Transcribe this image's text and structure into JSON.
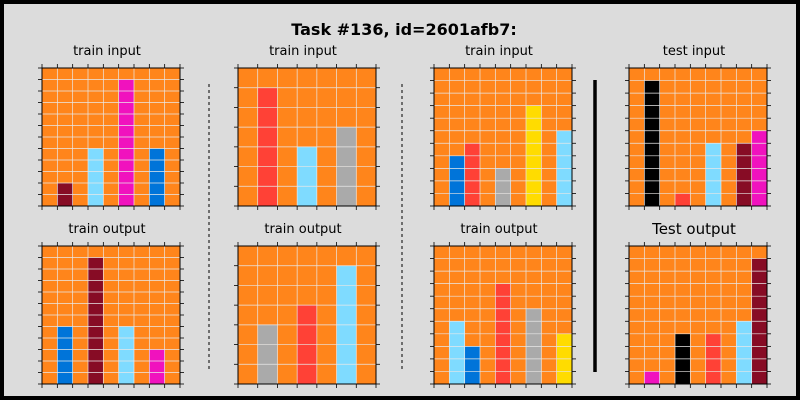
{
  "title": "Task #136, id=2601afb7:",
  "colors": {
    "background_fill": "#ff851b",
    "grid_line": "#e8e8e8",
    "page_bg": "#dcdcdc"
  },
  "panels": [
    {
      "key": "p1",
      "label": "train input",
      "rows": 12,
      "cols": 9,
      "bg": 8,
      "cells": [
        [
          1,
          10,
          9
        ],
        [
          1,
          11,
          9
        ],
        [
          3,
          7,
          8
        ],
        [
          3,
          8,
          8
        ],
        [
          3,
          9,
          8
        ],
        [
          3,
          10,
          8
        ],
        [
          3,
          11,
          8
        ],
        [
          5,
          1,
          6
        ],
        [
          5,
          2,
          6
        ],
        [
          5,
          3,
          6
        ],
        [
          5,
          4,
          6
        ],
        [
          5,
          5,
          6
        ],
        [
          5,
          6,
          6
        ],
        [
          5,
          7,
          6
        ],
        [
          5,
          8,
          6
        ],
        [
          5,
          9,
          6
        ],
        [
          5,
          10,
          6
        ],
        [
          5,
          11,
          6
        ],
        [
          7,
          7,
          1
        ],
        [
          7,
          8,
          1
        ],
        [
          7,
          9,
          1
        ],
        [
          7,
          10,
          1
        ],
        [
          7,
          11,
          1
        ]
      ]
    },
    {
      "key": "p2",
      "label": "train input",
      "rows": 7,
      "cols": 7,
      "bg": 8,
      "cells": [
        [
          1,
          1,
          2
        ],
        [
          1,
          2,
          2
        ],
        [
          1,
          3,
          2
        ],
        [
          1,
          4,
          2
        ],
        [
          1,
          5,
          2
        ],
        [
          1,
          6,
          2
        ],
        [
          3,
          4,
          8
        ],
        [
          3,
          5,
          8
        ],
        [
          3,
          6,
          8
        ],
        [
          5,
          3,
          5
        ],
        [
          5,
          4,
          5
        ],
        [
          5,
          5,
          5
        ],
        [
          5,
          6,
          5
        ]
      ]
    },
    {
      "key": "p3",
      "label": "train input",
      "rows": 11,
      "cols": 9,
      "bg": 8,
      "cells": [
        [
          1,
          7,
          1
        ],
        [
          1,
          8,
          1
        ],
        [
          1,
          9,
          1
        ],
        [
          1,
          10,
          1
        ],
        [
          2,
          6,
          2
        ],
        [
          2,
          7,
          2
        ],
        [
          2,
          8,
          2
        ],
        [
          2,
          9,
          2
        ],
        [
          2,
          10,
          2
        ],
        [
          4,
          8,
          5
        ],
        [
          4,
          9,
          5
        ],
        [
          4,
          10,
          5
        ],
        [
          6,
          3,
          4
        ],
        [
          6,
          4,
          4
        ],
        [
          6,
          5,
          4
        ],
        [
          6,
          6,
          4
        ],
        [
          6,
          7,
          4
        ],
        [
          6,
          8,
          4
        ],
        [
          6,
          9,
          4
        ],
        [
          6,
          10,
          4
        ],
        [
          8,
          5,
          8
        ],
        [
          8,
          6,
          8
        ],
        [
          8,
          7,
          8
        ],
        [
          8,
          8,
          8
        ],
        [
          8,
          9,
          8
        ],
        [
          8,
          10,
          8
        ]
      ]
    },
    {
      "key": "p4",
      "label": "test input",
      "rows": 11,
      "cols": 9,
      "bg": 8,
      "cells": [
        [
          1,
          1,
          0
        ],
        [
          1,
          2,
          0
        ],
        [
          1,
          3,
          0
        ],
        [
          1,
          4,
          0
        ],
        [
          1,
          5,
          0
        ],
        [
          1,
          6,
          0
        ],
        [
          1,
          7,
          0
        ],
        [
          1,
          8,
          0
        ],
        [
          1,
          9,
          0
        ],
        [
          1,
          10,
          0
        ],
        [
          3,
          10,
          2
        ],
        [
          5,
          6,
          8
        ],
        [
          5,
          7,
          8
        ],
        [
          5,
          8,
          8
        ],
        [
          5,
          9,
          8
        ],
        [
          5,
          10,
          8
        ],
        [
          7,
          6,
          9
        ],
        [
          7,
          7,
          9
        ],
        [
          7,
          8,
          9
        ],
        [
          7,
          9,
          9
        ],
        [
          7,
          10,
          9
        ],
        [
          8,
          5,
          6
        ],
        [
          8,
          6,
          6
        ],
        [
          8,
          7,
          6
        ],
        [
          8,
          8,
          6
        ],
        [
          8,
          9,
          6
        ],
        [
          8,
          10,
          6
        ]
      ]
    },
    {
      "key": "p5",
      "label": "train output",
      "rows": 12,
      "cols": 9,
      "bg": 8,
      "cells": [
        [
          1,
          7,
          1
        ],
        [
          1,
          8,
          1
        ],
        [
          1,
          9,
          1
        ],
        [
          1,
          10,
          1
        ],
        [
          1,
          11,
          1
        ],
        [
          3,
          1,
          9
        ],
        [
          3,
          2,
          9
        ],
        [
          3,
          3,
          9
        ],
        [
          3,
          4,
          9
        ],
        [
          3,
          5,
          9
        ],
        [
          3,
          6,
          9
        ],
        [
          3,
          7,
          9
        ],
        [
          3,
          8,
          9
        ],
        [
          3,
          9,
          9
        ],
        [
          3,
          10,
          9
        ],
        [
          3,
          11,
          9
        ],
        [
          5,
          7,
          8
        ],
        [
          5,
          8,
          8
        ],
        [
          5,
          9,
          8
        ],
        [
          5,
          10,
          8
        ],
        [
          5,
          11,
          8
        ],
        [
          7,
          9,
          6
        ],
        [
          7,
          10,
          6
        ],
        [
          7,
          11,
          6
        ]
      ]
    },
    {
      "key": "p6",
      "label": "train output",
      "rows": 7,
      "cols": 7,
      "bg": 8,
      "cells": [
        [
          1,
          4,
          5
        ],
        [
          1,
          5,
          5
        ],
        [
          1,
          6,
          5
        ],
        [
          3,
          3,
          2
        ],
        [
          3,
          4,
          2
        ],
        [
          3,
          5,
          2
        ],
        [
          3,
          6,
          2
        ],
        [
          5,
          1,
          8
        ],
        [
          5,
          2,
          8
        ],
        [
          5,
          3,
          8
        ],
        [
          5,
          4,
          8
        ],
        [
          5,
          5,
          8
        ],
        [
          5,
          6,
          8
        ]
      ]
    },
    {
      "key": "p7",
      "label": "train output",
      "rows": 11,
      "cols": 9,
      "bg": 8,
      "cells": [
        [
          1,
          6,
          8
        ],
        [
          1,
          7,
          8
        ],
        [
          1,
          8,
          8
        ],
        [
          1,
          9,
          8
        ],
        [
          1,
          10,
          8
        ],
        [
          2,
          8,
          1
        ],
        [
          2,
          9,
          1
        ],
        [
          2,
          10,
          1
        ],
        [
          4,
          3,
          2
        ],
        [
          4,
          4,
          2
        ],
        [
          4,
          5,
          2
        ],
        [
          4,
          6,
          2
        ],
        [
          4,
          7,
          2
        ],
        [
          4,
          8,
          2
        ],
        [
          4,
          9,
          2
        ],
        [
          4,
          10,
          2
        ],
        [
          6,
          5,
          5
        ],
        [
          6,
          6,
          5
        ],
        [
          6,
          7,
          5
        ],
        [
          6,
          8,
          5
        ],
        [
          6,
          9,
          5
        ],
        [
          6,
          10,
          5
        ],
        [
          8,
          7,
          4
        ],
        [
          8,
          8,
          4
        ],
        [
          8,
          9,
          4
        ],
        [
          8,
          10,
          4
        ]
      ]
    },
    {
      "key": "p8",
      "label": "Test output",
      "rows": 11,
      "cols": 9,
      "bg": 8,
      "cells": [
        [
          1,
          10,
          6
        ],
        [
          3,
          7,
          0
        ],
        [
          3,
          8,
          0
        ],
        [
          3,
          9,
          0
        ],
        [
          3,
          10,
          0
        ],
        [
          5,
          7,
          2
        ],
        [
          5,
          8,
          2
        ],
        [
          5,
          9,
          2
        ],
        [
          5,
          10,
          2
        ],
        [
          7,
          6,
          8
        ],
        [
          7,
          7,
          8
        ],
        [
          7,
          8,
          8
        ],
        [
          7,
          9,
          8
        ],
        [
          7,
          10,
          8
        ],
        [
          8,
          1,
          9
        ],
        [
          8,
          2,
          9
        ],
        [
          8,
          3,
          9
        ],
        [
          8,
          4,
          9
        ],
        [
          8,
          5,
          9
        ],
        [
          8,
          6,
          9
        ],
        [
          8,
          7,
          9
        ],
        [
          8,
          8,
          9
        ],
        [
          8,
          9,
          9
        ],
        [
          8,
          10,
          9
        ]
      ]
    }
  ],
  "arc_palette": {
    "0": "#000000",
    "1": "#0074d9",
    "2": "#ff4136",
    "4": "#ffdc00",
    "5": "#aaaaaa",
    "6": "#f012be",
    "8": "#7fdbff",
    "9": "#870c25"
  }
}
